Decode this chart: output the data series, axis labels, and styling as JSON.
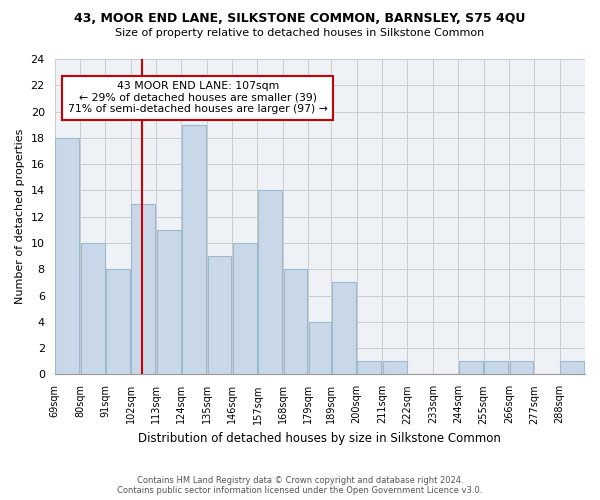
{
  "title1": "43, MOOR END LANE, SILKSTONE COMMON, BARNSLEY, S75 4QU",
  "title2": "Size of property relative to detached houses in Silkstone Common",
  "xlabel": "Distribution of detached houses by size in Silkstone Common",
  "ylabel": "Number of detached properties",
  "footer1": "Contains HM Land Registry data © Crown copyright and database right 2024.",
  "footer2": "Contains public sector information licensed under the Open Government Licence v3.0.",
  "bin_labels": [
    "69sqm",
    "80sqm",
    "91sqm",
    "102sqm",
    "113sqm",
    "124sqm",
    "135sqm",
    "146sqm",
    "157sqm",
    "168sqm",
    "179sqm",
    "189sqm",
    "200sqm",
    "211sqm",
    "222sqm",
    "233sqm",
    "244sqm",
    "255sqm",
    "266sqm",
    "277sqm",
    "288sqm"
  ],
  "bar_heights": [
    18,
    10,
    8,
    13,
    11,
    19,
    9,
    10,
    14,
    8,
    4,
    7,
    1,
    1,
    0,
    0,
    1,
    1,
    1,
    0,
    1
  ],
  "bar_color": "#c8d8e8",
  "bar_edge_color": "#a0b8cc",
  "vline_x": 107,
  "annotation_title": "43 MOOR END LANE: 107sqm",
  "annotation_line1": "← 29% of detached houses are smaller (39)",
  "annotation_line2": "71% of semi-detached houses are larger (97) →",
  "annotation_box_color": "#ffffff",
  "annotation_box_edge": "#cc0000",
  "vline_color": "#cc0000",
  "ylim": [
    0,
    24
  ],
  "bin_edges": [
    69,
    80,
    91,
    102,
    113,
    124,
    135,
    146,
    157,
    168,
    179,
    189,
    200,
    211,
    222,
    233,
    244,
    255,
    266,
    277,
    288,
    299
  ],
  "bg_color": "#eef2f7",
  "plot_bg_color": "#eef2f7"
}
